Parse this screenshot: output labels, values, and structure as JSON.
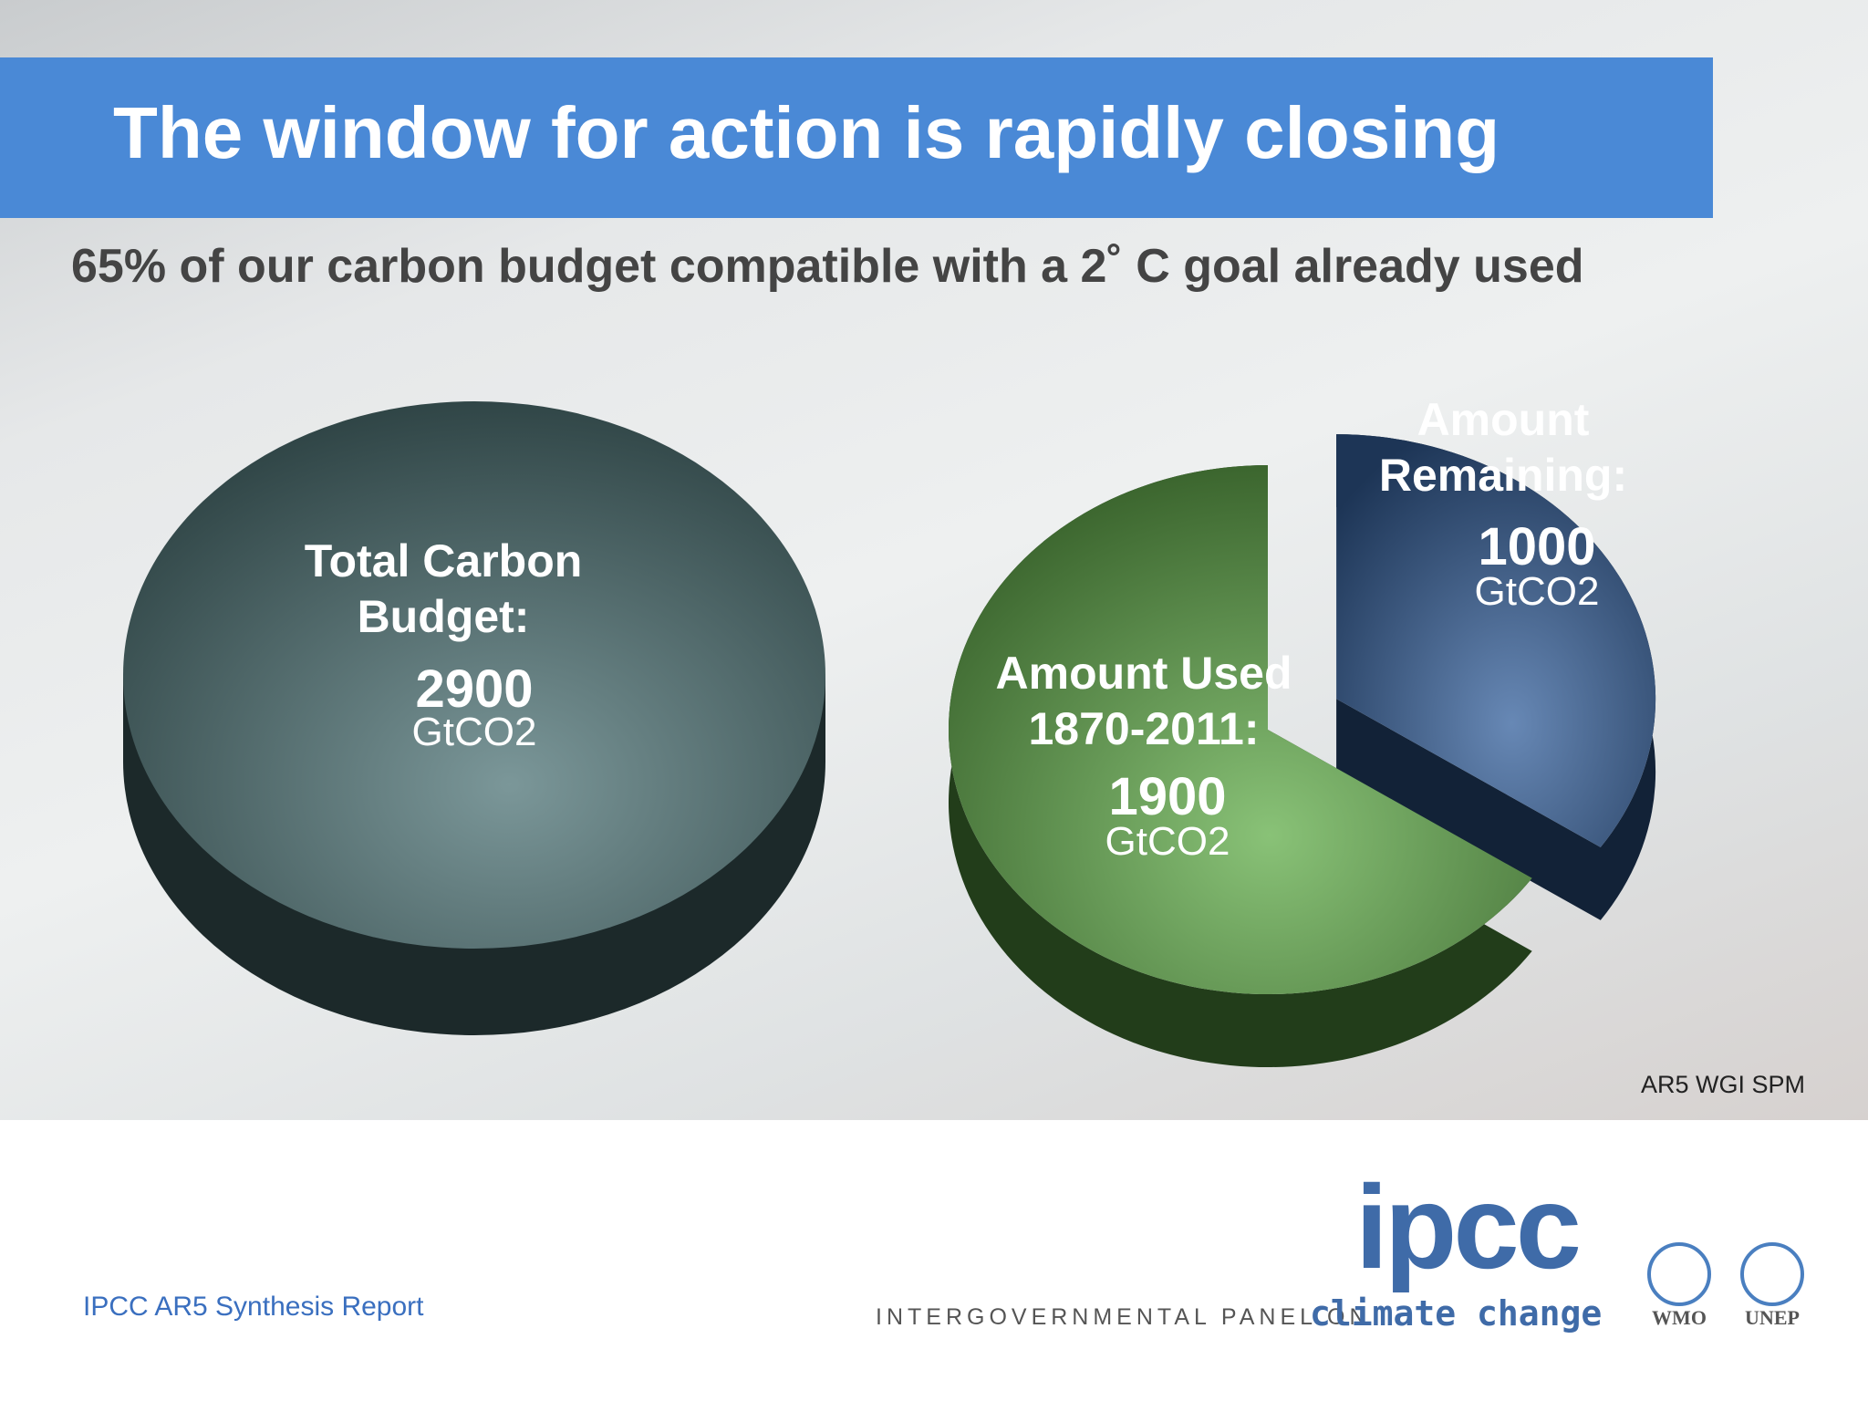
{
  "header": {
    "title": "The window for action is rapidly closing",
    "subtitle": "65% of our carbon budget compatible with a 2˚ C goal already used"
  },
  "chart_data": [
    {
      "type": "pie",
      "categories": [
        "Total Carbon Budget:"
      ],
      "values": [
        2900
      ],
      "unit": "GtCO2",
      "colors": [
        "#4f7477"
      ]
    },
    {
      "type": "pie",
      "categories": [
        "Amount Used 1870-2011:",
        "Amount Remaining:"
      ],
      "values": [
        1900,
        1000
      ],
      "unit": "GtCO2",
      "colors": [
        "#62ad4a",
        "#34609c"
      ]
    }
  ],
  "source": "AR5 WGI SPM",
  "footer": {
    "report": "IPCC AR5 Synthesis Report",
    "logo": "ipcc",
    "org": "INTERGOVERNMENTAL PANEL ON",
    "org_highlight": "climate change",
    "partners": [
      "WMO",
      "UNEP"
    ]
  }
}
